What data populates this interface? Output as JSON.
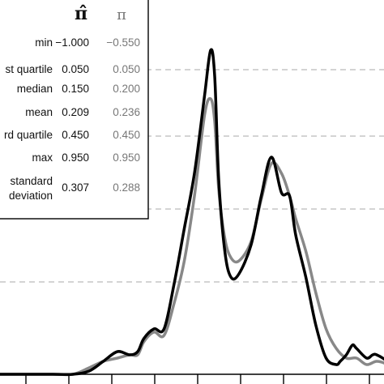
{
  "chart_data": {
    "type": "line",
    "title": "",
    "xlabel": "",
    "ylabel": "",
    "xlim": [
      -1.0,
      1.0
    ],
    "ylim": [
      0,
      1.0
    ],
    "grid": "horizontal-dashed",
    "x_tick_count": 9,
    "series": [
      {
        "name": "",
        "color": "#000000",
        "x": [
          -1.0,
          -0.7,
          -0.6,
          -0.52,
          -0.45,
          -0.38,
          -0.32,
          -0.28,
          -0.25,
          -0.2,
          -0.15,
          -0.1,
          -0.05,
          0.0,
          0.05,
          0.08,
          0.1,
          0.12,
          0.15,
          0.18,
          0.22,
          0.28,
          0.33,
          0.38,
          0.43,
          0.47,
          0.5,
          0.55,
          0.6,
          0.65,
          0.7,
          0.72,
          0.75,
          0.78,
          0.8,
          0.85,
          0.88,
          0.9,
          0.95,
          1.0
        ],
        "values": [
          0.0,
          0.0,
          0.0,
          0.01,
          0.04,
          0.07,
          0.06,
          0.07,
          0.11,
          0.14,
          0.14,
          0.28,
          0.45,
          0.62,
          0.86,
          1.0,
          0.92,
          0.6,
          0.38,
          0.3,
          0.31,
          0.4,
          0.55,
          0.67,
          0.56,
          0.55,
          0.43,
          0.3,
          0.15,
          0.05,
          0.03,
          0.04,
          0.06,
          0.09,
          0.08,
          0.05,
          0.06,
          0.06,
          0.04,
          0.0
        ]
      },
      {
        "name": "",
        "color": "#888888",
        "x": [
          -1.0,
          -0.7,
          -0.6,
          -0.52,
          -0.45,
          -0.38,
          -0.32,
          -0.28,
          -0.25,
          -0.2,
          -0.15,
          -0.1,
          -0.05,
          0.0,
          0.05,
          0.08,
          0.1,
          0.12,
          0.15,
          0.18,
          0.22,
          0.28,
          0.33,
          0.38,
          0.43,
          0.47,
          0.5,
          0.55,
          0.6,
          0.65,
          0.7,
          0.75,
          0.8,
          0.85,
          0.9,
          0.95,
          1.0
        ],
        "values": [
          0.0,
          0.0,
          0.0,
          0.02,
          0.04,
          0.05,
          0.06,
          0.06,
          0.1,
          0.13,
          0.12,
          0.22,
          0.35,
          0.55,
          0.8,
          0.85,
          0.78,
          0.57,
          0.42,
          0.36,
          0.35,
          0.41,
          0.54,
          0.65,
          0.62,
          0.55,
          0.48,
          0.38,
          0.25,
          0.14,
          0.08,
          0.05,
          0.05,
          0.03,
          0.04,
          0.03,
          0.0
        ]
      }
    ],
    "table": {
      "header_estimate": "π̂",
      "header_true": "π",
      "rows": [
        {
          "label": "min",
          "estimate": "−1.000",
          "true": "−0.550"
        },
        {
          "label": "st quartile",
          "estimate": "0.050",
          "true": "0.050"
        },
        {
          "label": "median",
          "estimate": "0.150",
          "true": "0.200"
        },
        {
          "label": "mean",
          "estimate": "0.209",
          "true": "0.236"
        },
        {
          "label": "rd quartile",
          "estimate": "0.450",
          "true": "0.450"
        },
        {
          "label": "max",
          "estimate": "0.950",
          "true": "0.950"
        },
        {
          "label": "standard\ndeviation",
          "estimate": "0.307",
          "true": "0.288"
        }
      ]
    },
    "colors": {
      "estimate": "#000000",
      "true": "#888888",
      "grid": "#bbbbbb"
    }
  }
}
